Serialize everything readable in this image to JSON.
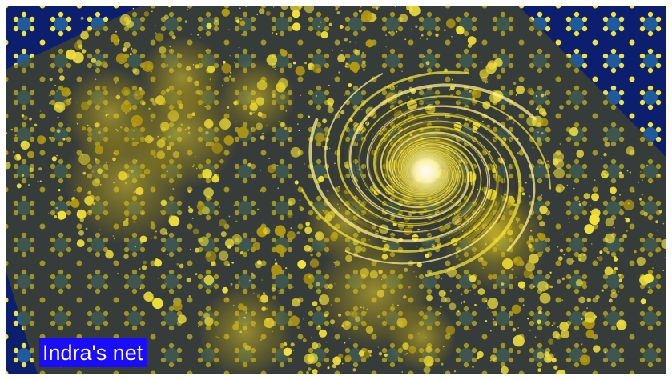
{
  "caption": {
    "text": "Indra's net"
  },
  "image": {
    "subject": "fractal-spiral-circle-packing",
    "colors": {
      "background": "#0c1f6e",
      "tile_blue": "#1d5a9e",
      "gold": "#f2e13a",
      "gold_dark": "#b59a0c",
      "highlight": "#fffbe0",
      "caption_bg": "#1a0dff",
      "caption_text": "#ffffff"
    }
  }
}
